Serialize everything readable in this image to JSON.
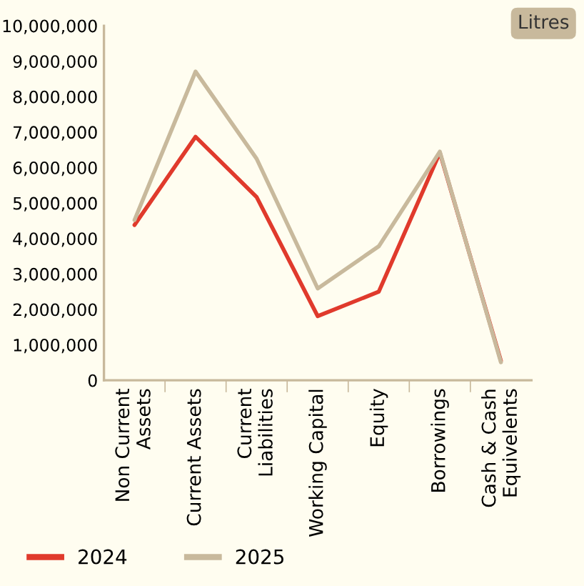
{
  "chart_data": {
    "type": "line",
    "categories": [
      "Non Current\nAssets",
      "Current Assets",
      "Current\nLiabilities",
      "Working Capital",
      "Equity",
      "Borrowings",
      "Cash & Cash\nEquivelents"
    ],
    "series": [
      {
        "name": "2024",
        "color": "#e03a2c",
        "values": [
          4380000,
          6870000,
          5170000,
          1810000,
          2500000,
          6420000,
          550000
        ]
      },
      {
        "name": "2025",
        "color": "#c8b99c",
        "values": [
          4520000,
          8710000,
          6250000,
          2590000,
          3780000,
          6450000,
          510000
        ]
      }
    ],
    "ylim": [
      0,
      10000000
    ],
    "yticks": [
      {
        "value": 0,
        "label": "0"
      },
      {
        "value": 1000000,
        "label": "1,000,000"
      },
      {
        "value": 2000000,
        "label": "2,000,000"
      },
      {
        "value": 3000000,
        "label": "3,000,000"
      },
      {
        "value": 4000000,
        "label": "4,000,000"
      },
      {
        "value": 5000000,
        "label": "5,000,000"
      },
      {
        "value": 6000000,
        "label": "6,000,000"
      },
      {
        "value": 7000000,
        "label": "7,000,000"
      },
      {
        "value": 8000000,
        "label": "8,000,000"
      },
      {
        "value": 9000000,
        "label": "9,000,000"
      },
      {
        "value": 10000000,
        "label": "10,000,000"
      }
    ],
    "annotations": [
      "Litres"
    ],
    "grid": false,
    "legend": "bottom left",
    "marker": "none",
    "line_style": "solid"
  }
}
